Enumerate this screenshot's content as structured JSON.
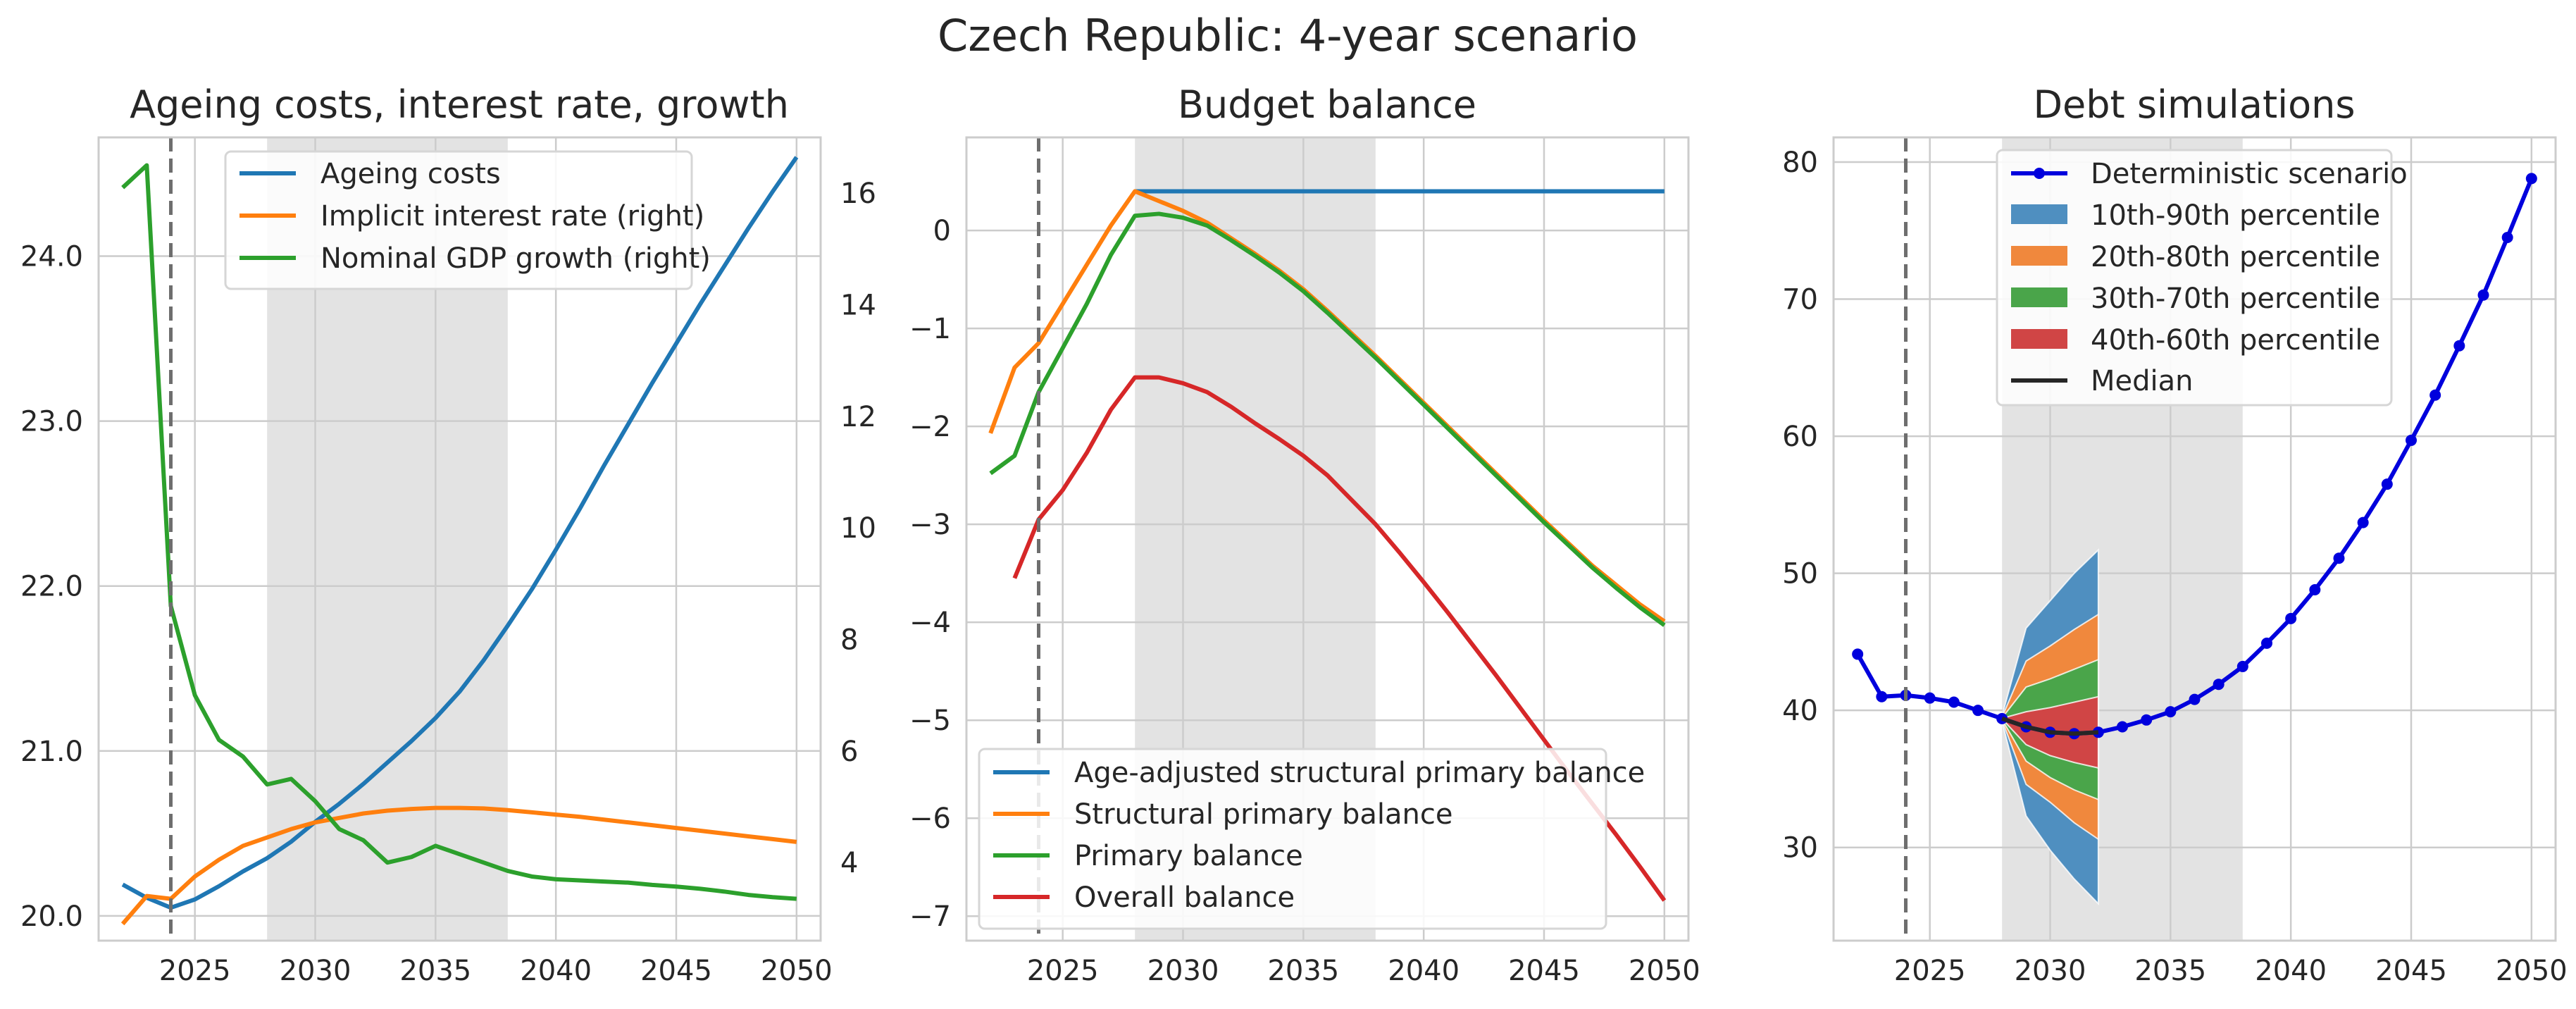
{
  "figure_title": "Czech Republic: 4-year scenario",
  "colors": {
    "blue": "#1f77b4",
    "orange": "#ff7f0e",
    "green": "#2ca02c",
    "red": "#d62728",
    "navy": "#0000dd",
    "shade": "#e3e3e3",
    "grid": "#cccccc",
    "text": "#262626",
    "fan10": "#4f8fc0",
    "fan20": "#f0883d",
    "fan30": "#4aa54a",
    "fan40": "#d04545"
  },
  "chart_data": [
    {
      "type": "line",
      "title": "Ageing costs, interest rate, growth",
      "xlim": [
        2021,
        2051
      ],
      "xticks": [
        "2025",
        "2030",
        "2035",
        "2040",
        "2045",
        "2050"
      ],
      "ylim_left": [
        19.85,
        24.72
      ],
      "yticks_left": [
        "20.0",
        "21.0",
        "22.0",
        "23.0",
        "24.0"
      ],
      "ylim_right": [
        2.6,
        17.0
      ],
      "yticks_right": [
        "4",
        "6",
        "8",
        "10",
        "12",
        "14",
        "16"
      ],
      "vline_x": 2024,
      "shaded_x": [
        2028,
        2038
      ],
      "grid": true,
      "legend_position": "upper center",
      "series": [
        {
          "name": "Ageing costs",
          "axis": "left",
          "color": "#1f77b4",
          "x": [
            2022,
            2023,
            2024,
            2025,
            2026,
            2027,
            2028,
            2029,
            2030,
            2031,
            2032,
            2033,
            2034,
            2035,
            2036,
            2037,
            2038,
            2039,
            2040,
            2041,
            2042,
            2043,
            2044,
            2045,
            2046,
            2047,
            2048,
            2049,
            2050
          ],
          "y": [
            20.19,
            20.11,
            20.05,
            20.1,
            20.18,
            20.27,
            20.35,
            20.45,
            20.57,
            20.68,
            20.8,
            20.93,
            21.06,
            21.2,
            21.36,
            21.55,
            21.76,
            21.98,
            22.22,
            22.47,
            22.73,
            22.98,
            23.23,
            23.47,
            23.71,
            23.94,
            24.17,
            24.39,
            24.6
          ]
        },
        {
          "name": "Implicit interest rate (right)",
          "axis": "right",
          "color": "#ff7f0e",
          "x": [
            2022,
            2023,
            2024,
            2025,
            2026,
            2027,
            2028,
            2029,
            2030,
            2031,
            2032,
            2033,
            2034,
            2035,
            2036,
            2037,
            2038,
            2039,
            2040,
            2041,
            2042,
            2043,
            2044,
            2045,
            2046,
            2047,
            2048,
            2049,
            2050
          ],
          "y": [
            2.9,
            3.4,
            3.35,
            3.75,
            4.05,
            4.3,
            4.45,
            4.6,
            4.72,
            4.8,
            4.88,
            4.93,
            4.96,
            4.98,
            4.98,
            4.97,
            4.94,
            4.9,
            4.86,
            4.82,
            4.77,
            4.72,
            4.67,
            4.62,
            4.57,
            4.52,
            4.47,
            4.42,
            4.37
          ]
        },
        {
          "name": "Nominal GDP growth (right)",
          "axis": "right",
          "color": "#2ca02c",
          "x": [
            2022,
            2023,
            2024,
            2025,
            2026,
            2027,
            2028,
            2029,
            2030,
            2031,
            2032,
            2033,
            2034,
            2035,
            2036,
            2037,
            2038,
            2039,
            2040,
            2041,
            2042,
            2043,
            2044,
            2045,
            2046,
            2047,
            2048,
            2049,
            2050
          ],
          "y": [
            16.1,
            16.5,
            8.6,
            7.0,
            6.2,
            5.9,
            5.4,
            5.5,
            5.1,
            4.6,
            4.4,
            4.0,
            4.1,
            4.3,
            4.15,
            4.0,
            3.85,
            3.75,
            3.7,
            3.68,
            3.66,
            3.64,
            3.6,
            3.57,
            3.53,
            3.48,
            3.42,
            3.38,
            3.35
          ]
        }
      ]
    },
    {
      "type": "line",
      "title": "Budget balance",
      "xlim": [
        2021,
        2051
      ],
      "xticks": [
        "2025",
        "2030",
        "2035",
        "2040",
        "2045",
        "2050"
      ],
      "ylim": [
        -7.25,
        0.95
      ],
      "yticks": [
        "0",
        "−1",
        "−2",
        "−3",
        "−4",
        "−5",
        "−6",
        "−7"
      ],
      "vline_x": 2024,
      "shaded_x": [
        2028,
        2038
      ],
      "grid": true,
      "legend_position": "lower left",
      "series": [
        {
          "name": "Age-adjusted structural primary balance",
          "color": "#1f77b4",
          "x": [
            2028,
            2029,
            2030,
            2031,
            2032,
            2033,
            2034,
            2035,
            2036,
            2037,
            2038,
            2039,
            2040,
            2041,
            2042,
            2043,
            2044,
            2045,
            2046,
            2047,
            2048,
            2049,
            2050
          ],
          "y": [
            0.4,
            0.4,
            0.4,
            0.4,
            0.4,
            0.4,
            0.4,
            0.4,
            0.4,
            0.4,
            0.4,
            0.4,
            0.4,
            0.4,
            0.4,
            0.4,
            0.4,
            0.4,
            0.4,
            0.4,
            0.4,
            0.4,
            0.4
          ]
        },
        {
          "name": "Structural primary balance",
          "color": "#ff7f0e",
          "x": [
            2022,
            2023,
            2024,
            2025,
            2026,
            2027,
            2028,
            2029,
            2030,
            2031,
            2032,
            2033,
            2034,
            2035,
            2036,
            2037,
            2038,
            2039,
            2040,
            2041,
            2042,
            2043,
            2044,
            2045,
            2046,
            2047,
            2048,
            2049,
            2050
          ],
          "y": [
            -2.07,
            -1.4,
            -1.15,
            -0.75,
            -0.35,
            0.05,
            0.4,
            0.3,
            0.2,
            0.08,
            -0.08,
            -0.24,
            -0.41,
            -0.6,
            -0.82,
            -1.05,
            -1.28,
            -1.52,
            -1.76,
            -2.0,
            -2.24,
            -2.48,
            -2.72,
            -2.96,
            -3.19,
            -3.42,
            -3.62,
            -3.82,
            -3.99
          ]
        },
        {
          "name": "Primary balance",
          "color": "#2ca02c",
          "x": [
            2022,
            2023,
            2024,
            2025,
            2026,
            2027,
            2028,
            2029,
            2030,
            2031,
            2032,
            2033,
            2034,
            2035,
            2036,
            2037,
            2038,
            2039,
            2040,
            2041,
            2042,
            2043,
            2044,
            2045,
            2046,
            2047,
            2048,
            2049,
            2050
          ],
          "y": [
            -2.48,
            -2.3,
            -1.65,
            -1.2,
            -0.75,
            -0.25,
            0.15,
            0.17,
            0.13,
            0.05,
            -0.1,
            -0.26,
            -0.43,
            -0.62,
            -0.84,
            -1.07,
            -1.3,
            -1.54,
            -1.78,
            -2.02,
            -2.26,
            -2.5,
            -2.74,
            -2.98,
            -3.21,
            -3.44,
            -3.65,
            -3.85,
            -4.03
          ]
        },
        {
          "name": "Overall balance",
          "color": "#d62728",
          "x": [
            2023,
            2024,
            2025,
            2026,
            2027,
            2028,
            2029,
            2030,
            2031,
            2032,
            2033,
            2034,
            2035,
            2036,
            2037,
            2038,
            2039,
            2040,
            2041,
            2042,
            2043,
            2044,
            2045,
            2046,
            2047,
            2048,
            2049,
            2050
          ],
          "y": [
            -3.55,
            -2.95,
            -2.65,
            -2.27,
            -1.83,
            -1.5,
            -1.5,
            -1.56,
            -1.65,
            -1.8,
            -1.97,
            -2.13,
            -2.3,
            -2.5,
            -2.75,
            -3.0,
            -3.29,
            -3.59,
            -3.9,
            -4.22,
            -4.54,
            -4.87,
            -5.2,
            -5.53,
            -5.85,
            -6.17,
            -6.5,
            -6.84
          ]
        }
      ]
    },
    {
      "type": "area",
      "title": "Debt simulations",
      "xlim": [
        2021,
        2051
      ],
      "xticks": [
        "2025",
        "2030",
        "2035",
        "2040",
        "2045",
        "2050"
      ],
      "ylim": [
        23.2,
        81.8
      ],
      "yticks": [
        "30",
        "40",
        "50",
        "60",
        "70",
        "80"
      ],
      "vline_x": 2024,
      "shaded_x": [
        2028,
        2038
      ],
      "grid": true,
      "legend_position": "upper center",
      "series": [
        {
          "name": "Deterministic scenario",
          "color": "#0000dd",
          "x": [
            2022,
            2023,
            2024,
            2025,
            2026,
            2027,
            2028,
            2029,
            2030,
            2031,
            2032,
            2033,
            2034,
            2035,
            2036,
            2037,
            2038,
            2039,
            2040,
            2041,
            2042,
            2043,
            2044,
            2045,
            2046,
            2047,
            2048,
            2049,
            2050
          ],
          "y": [
            44.1,
            41.0,
            41.1,
            40.9,
            40.6,
            40.0,
            39.4,
            38.8,
            38.4,
            38.3,
            38.4,
            38.8,
            39.3,
            39.9,
            40.8,
            41.9,
            43.2,
            44.9,
            46.7,
            48.8,
            51.1,
            53.7,
            56.5,
            59.7,
            63.0,
            66.6,
            70.3,
            74.5,
            78.8
          ]
        },
        {
          "name": "Median",
          "color": "#262626",
          "x": [
            2028,
            2029,
            2030,
            2031,
            2032
          ],
          "y": [
            39.4,
            38.8,
            38.4,
            38.3,
            38.4
          ]
        }
      ],
      "bands": [
        {
          "name": "10th-90th percentile",
          "color": "#4f8fc0",
          "x": [
            2028,
            2029,
            2030,
            2031,
            2032
          ],
          "lower": [
            39.2,
            32.3,
            29.8,
            27.7,
            25.9
          ],
          "upper": [
            39.6,
            46.0,
            48.0,
            50.0,
            51.7
          ]
        },
        {
          "name": "20th-80th percentile",
          "color": "#f0883d",
          "x": [
            2028,
            2029,
            2030,
            2031,
            2032
          ],
          "lower": [
            39.3,
            34.6,
            33.3,
            31.8,
            30.6
          ],
          "upper": [
            39.5,
            43.6,
            44.7,
            45.9,
            47.0
          ]
        },
        {
          "name": "30th-70th percentile",
          "color": "#4aa54a",
          "x": [
            2028,
            2029,
            2030,
            2031,
            2032
          ],
          "lower": [
            39.35,
            36.3,
            35.1,
            34.2,
            33.5
          ],
          "upper": [
            39.45,
            41.7,
            42.3,
            43.0,
            43.7
          ]
        },
        {
          "name": "40th-60th percentile",
          "color": "#d04545",
          "x": [
            2028,
            2029,
            2030,
            2031,
            2032
          ],
          "lower": [
            39.38,
            37.5,
            36.7,
            36.2,
            35.8
          ],
          "upper": [
            39.42,
            39.9,
            40.2,
            40.6,
            41.0
          ]
        }
      ]
    }
  ]
}
